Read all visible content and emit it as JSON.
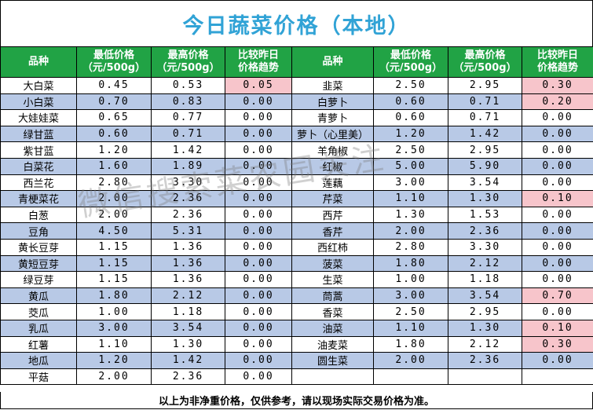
{
  "title": "今日蔬菜价格（本地）",
  "headers": {
    "name": "品种",
    "min_line1": "最低价格",
    "min_line2": "（元/500g）",
    "max_line1": "最高价格",
    "max_line2": "（元/500g）",
    "trend_line1": "比较昨日",
    "trend_line2": "价格趋势"
  },
  "left_rows": [
    {
      "name": "大白菜",
      "min": "0.45",
      "max": "0.53",
      "trend": "0.05",
      "up": true,
      "shade": false
    },
    {
      "name": "小白菜",
      "min": "0.70",
      "max": "0.83",
      "trend": "0.00",
      "up": false,
      "shade": true
    },
    {
      "name": "大娃娃菜",
      "min": "0.65",
      "max": "0.77",
      "trend": "0.00",
      "up": false,
      "shade": false
    },
    {
      "name": "绿甘蓝",
      "min": "0.60",
      "max": "0.71",
      "trend": "0.00",
      "up": false,
      "shade": true
    },
    {
      "name": "紫甘蓝",
      "min": "1.20",
      "max": "1.42",
      "trend": "0.00",
      "up": false,
      "shade": false
    },
    {
      "name": "白菜花",
      "min": "1.60",
      "max": "1.89",
      "trend": "0.00",
      "up": false,
      "shade": true
    },
    {
      "name": "西兰花",
      "min": "2.80",
      "max": "3.30",
      "trend": "0.00",
      "up": false,
      "shade": false
    },
    {
      "name": "青梗菜花",
      "min": "2.00",
      "max": "2.36",
      "trend": "0.00",
      "up": false,
      "shade": true
    },
    {
      "name": "白葱",
      "min": "2.00",
      "max": "2.36",
      "trend": "0.00",
      "up": false,
      "shade": false
    },
    {
      "name": "豆角",
      "min": "4.50",
      "max": "5.31",
      "trend": "0.00",
      "up": false,
      "shade": true
    },
    {
      "name": "黄长豆芽",
      "min": "1.15",
      "max": "1.36",
      "trend": "0.00",
      "up": false,
      "shade": false
    },
    {
      "name": "黄短豆芽",
      "min": "1.15",
      "max": "1.36",
      "trend": "0.00",
      "up": false,
      "shade": true
    },
    {
      "name": "绿豆芽",
      "min": "1.15",
      "max": "1.36",
      "trend": "0.00",
      "up": false,
      "shade": false
    },
    {
      "name": "黄瓜",
      "min": "1.80",
      "max": "2.12",
      "trend": "0.00",
      "up": false,
      "shade": true
    },
    {
      "name": "茭瓜",
      "min": "1.00",
      "max": "1.18",
      "trend": "0.00",
      "up": false,
      "shade": false
    },
    {
      "name": "乳瓜",
      "min": "3.00",
      "max": "3.54",
      "trend": "0.00",
      "up": false,
      "shade": true
    },
    {
      "name": "红薯",
      "min": "1.10",
      "max": "1.30",
      "trend": "0.00",
      "up": false,
      "shade": false
    },
    {
      "name": "地瓜",
      "min": "1.20",
      "max": "1.42",
      "trend": "0.00",
      "up": false,
      "shade": true
    },
    {
      "name": "平菇",
      "min": "2.00",
      "max": "2.36",
      "trend": "0.00",
      "up": false,
      "shade": false
    }
  ],
  "right_rows": [
    {
      "name": "韭菜",
      "min": "2.50",
      "max": "2.95",
      "trend": "0.30",
      "up": true,
      "shade": false
    },
    {
      "name": "白萝卜",
      "min": "0.60",
      "max": "0.71",
      "trend": "0.20",
      "up": true,
      "shade": true
    },
    {
      "name": "青萝卜",
      "min": "0.60",
      "max": "0.71",
      "trend": "0.00",
      "up": false,
      "shade": false
    },
    {
      "name": "萝卜（心里美）",
      "min": "1.20",
      "max": "1.42",
      "trend": "0.00",
      "up": false,
      "shade": true
    },
    {
      "name": "羊角椒",
      "min": "2.50",
      "max": "2.95",
      "trend": "0.00",
      "up": false,
      "shade": false
    },
    {
      "name": "红椒",
      "min": "5.00",
      "max": "5.90",
      "trend": "0.00",
      "up": false,
      "shade": true
    },
    {
      "name": "莲藕",
      "min": "3.00",
      "max": "3.54",
      "trend": "0.00",
      "up": false,
      "shade": false
    },
    {
      "name": "芹菜",
      "min": "1.10",
      "max": "1.30",
      "trend": "0.10",
      "up": true,
      "shade": true
    },
    {
      "name": "西芹",
      "min": "1.30",
      "max": "1.53",
      "trend": "0.00",
      "up": false,
      "shade": false
    },
    {
      "name": "香芹",
      "min": "2.00",
      "max": "2.36",
      "trend": "0.00",
      "up": false,
      "shade": true
    },
    {
      "name": "西红柿",
      "min": "2.80",
      "max": "3.30",
      "trend": "0.00",
      "up": false,
      "shade": false
    },
    {
      "name": "菠菜",
      "min": "1.80",
      "max": "2.12",
      "trend": "0.00",
      "up": false,
      "shade": true
    },
    {
      "name": "生菜",
      "min": "1.00",
      "max": "1.18",
      "trend": "0.00",
      "up": false,
      "shade": false
    },
    {
      "name": "茼蒿",
      "min": "3.00",
      "max": "3.54",
      "trend": "0.70",
      "up": true,
      "shade": true
    },
    {
      "name": "香菜",
      "min": "2.50",
      "max": "2.95",
      "trend": "0.00",
      "up": false,
      "shade": false
    },
    {
      "name": "油菜",
      "min": "1.10",
      "max": "1.30",
      "trend": "0.10",
      "up": true,
      "shade": true
    },
    {
      "name": "油麦菜",
      "min": "1.80",
      "max": "2.12",
      "trend": "0.30",
      "up": true,
      "shade": false
    },
    {
      "name": "圆生菜",
      "min": "2.00",
      "max": "2.36",
      "trend": "0.00",
      "up": false,
      "shade": true
    }
  ],
  "footer": "以上为非净重价格，仅供参考，请以现场实际交易价格为准。",
  "watermark": "微信搜索菜农园关注",
  "colors": {
    "title": "#31a3d6",
    "header_bg": "#21a345",
    "shade": "#b8c9e6",
    "up_highlight": "#f7c5cb"
  }
}
